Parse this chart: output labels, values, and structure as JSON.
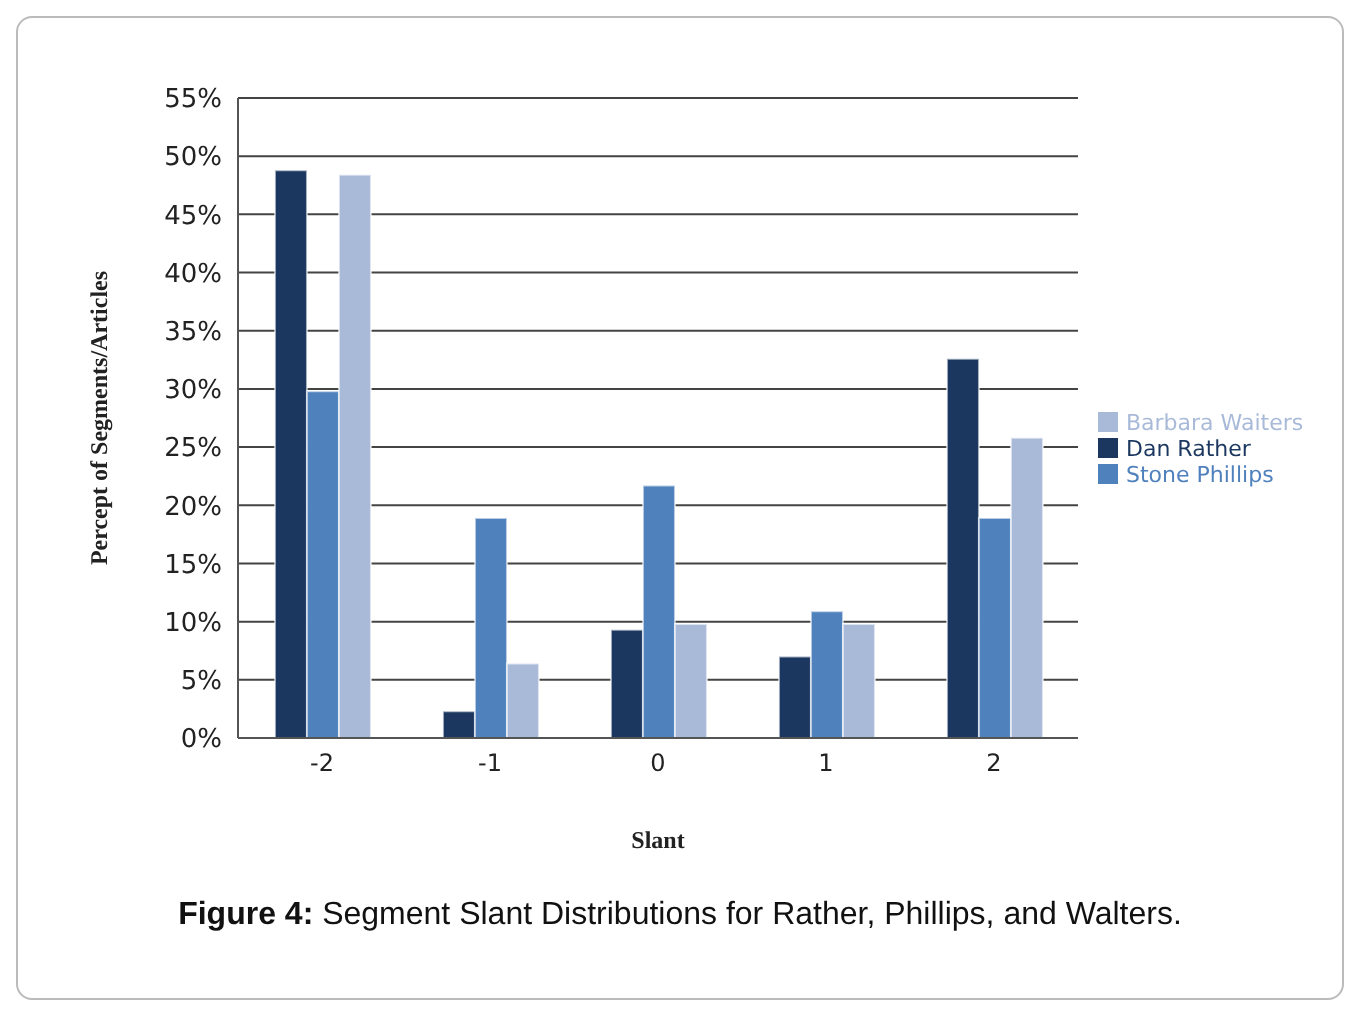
{
  "chart_data": {
    "type": "bar",
    "xlabel": "Slant",
    "ylabel": "Percept of Segments/Articles",
    "categories": [
      "-2",
      "-1",
      "0",
      "1",
      "2"
    ],
    "series": [
      {
        "name": "Dan Rather",
        "color": "#1b375f",
        "values": [
          48.8,
          2.3,
          9.3,
          7.0,
          32.6
        ]
      },
      {
        "name": "Stone Phillips",
        "color": "#4f81bd",
        "values": [
          29.8,
          18.9,
          21.7,
          10.9,
          18.9
        ]
      },
      {
        "name": "Barbara Waiters",
        "color": "#a9bad9",
        "values": [
          48.4,
          6.4,
          9.8,
          9.8,
          25.8
        ]
      }
    ],
    "ylim": [
      0,
      55
    ],
    "yticks": [
      {
        "value": 0,
        "label": "0%"
      },
      {
        "value": 5,
        "label": "5%"
      },
      {
        "value": 10,
        "label": "10%"
      },
      {
        "value": 15,
        "label": "15%"
      },
      {
        "value": 20,
        "label": "20%"
      },
      {
        "value": 25,
        "label": "25%"
      },
      {
        "value": 30,
        "label": "30%"
      },
      {
        "value": 35,
        "label": "35%"
      },
      {
        "value": 40,
        "label": "40%"
      },
      {
        "value": 45,
        "label": "45%"
      },
      {
        "value": 50,
        "label": "50%"
      },
      {
        "value": 55,
        "label": "55%"
      }
    ],
    "grid": "y",
    "legend": "right",
    "annotations": [
      "Figure 4: Segment Slant Distributions for Rather, Phillips, and Walters."
    ]
  }
}
